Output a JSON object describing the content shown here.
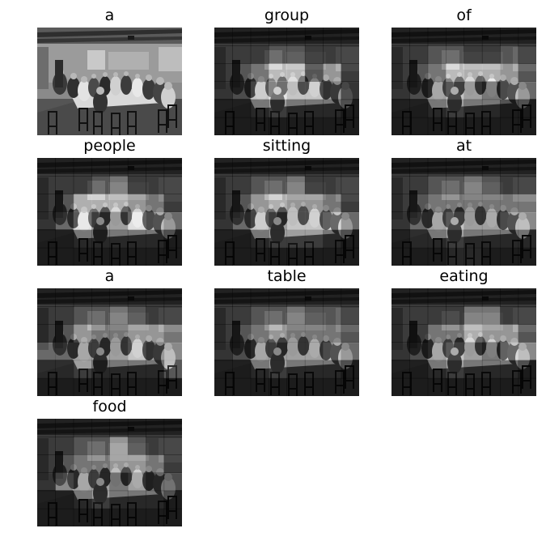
{
  "captions": [
    {
      "word": "a"
    },
    {
      "word": "group"
    },
    {
      "word": "of"
    },
    {
      "word": "people"
    },
    {
      "word": "sitting"
    },
    {
      "word": "at"
    },
    {
      "word": "a"
    },
    {
      "word": "table"
    },
    {
      "word": "eating"
    },
    {
      "word": "food"
    }
  ]
}
